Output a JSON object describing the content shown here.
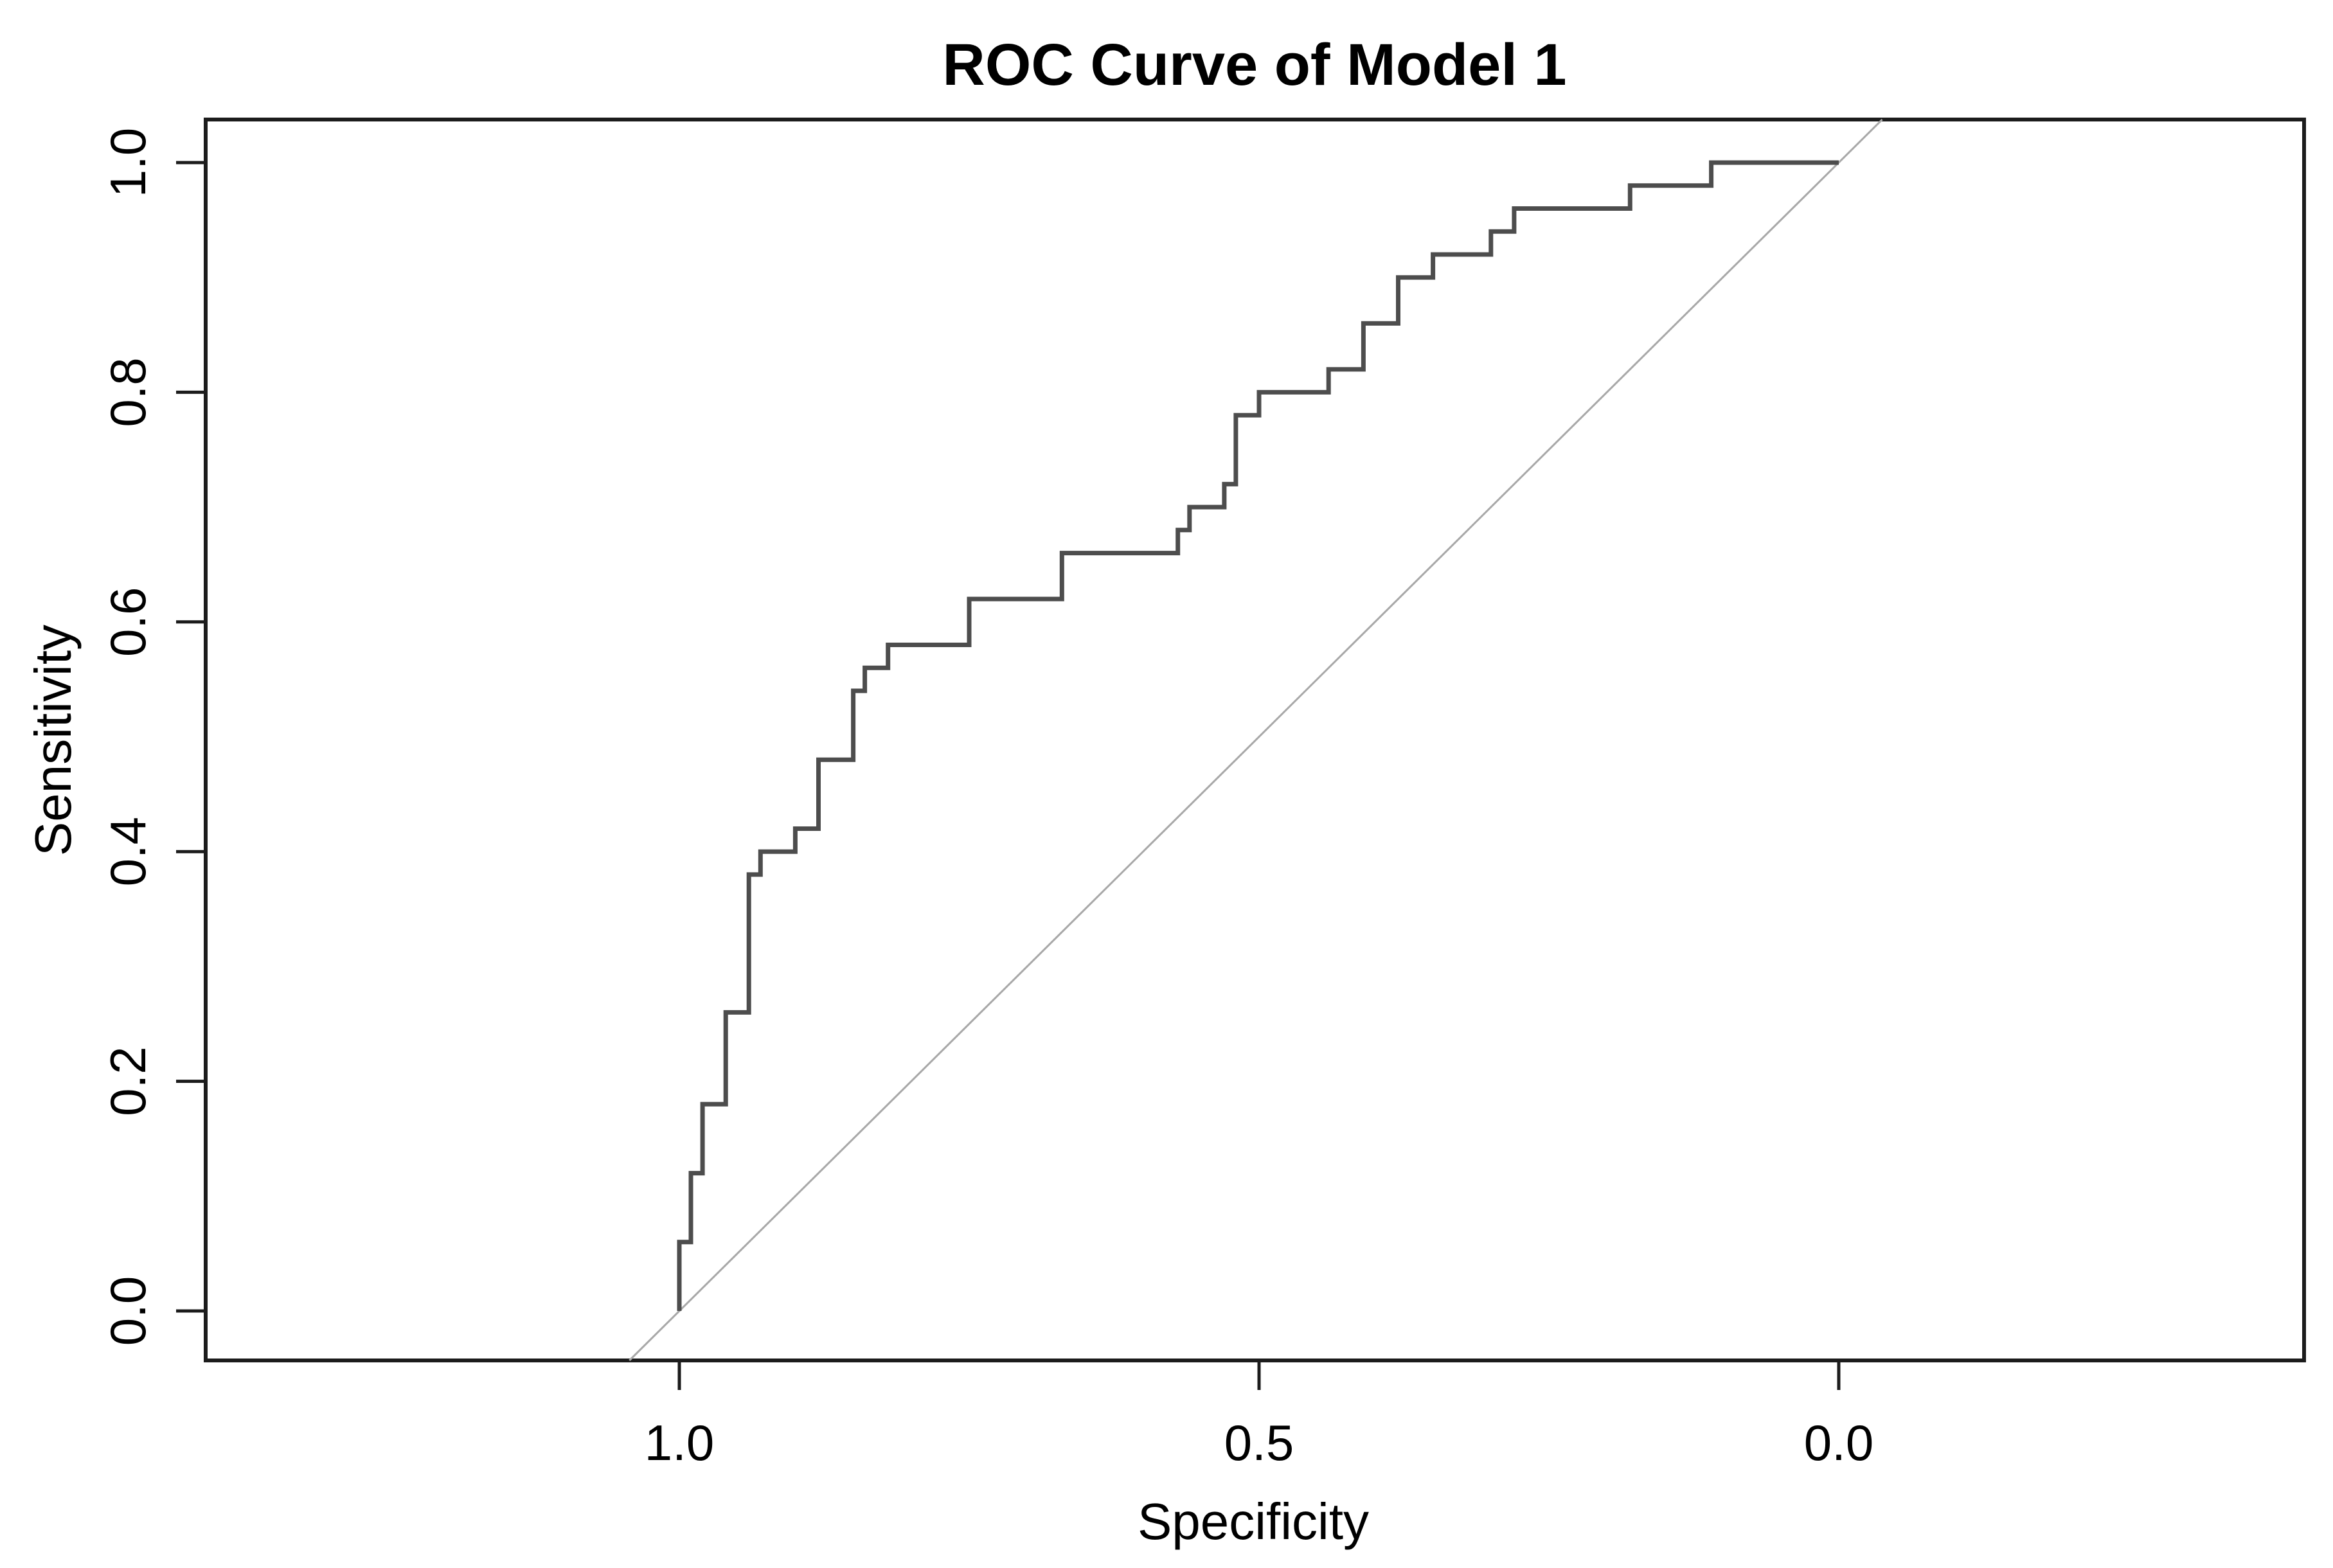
{
  "chart_data": {
    "type": "line",
    "subtype": "roc-step-curve",
    "title": "ROC Curve of Model 1",
    "xlabel": "Specificity",
    "ylabel": "Sensitivity",
    "x_axis_reversed": true,
    "xlim": [
      1.0,
      0.0
    ],
    "ylim": [
      0.0,
      1.0
    ],
    "x_ticks": [
      1.0,
      0.5,
      0.0
    ],
    "x_tick_labels": [
      "1.0",
      "0.5",
      "0.0"
    ],
    "y_ticks": [
      0.0,
      0.2,
      0.4,
      0.6,
      0.8,
      1.0
    ],
    "y_tick_labels": [
      "0.0",
      "0.2",
      "0.4",
      "0.6",
      "0.8",
      "1.0"
    ],
    "grid": false,
    "legend": null,
    "colors": {
      "curve": "#4d4d4d",
      "reference_diagonal": "#a8a8a8",
      "axis": "#1c1c1c",
      "background": "#ffffff"
    },
    "series": [
      {
        "name": "ROC curve of Model 1",
        "style": "step",
        "points_format": [
          "specificity",
          "sensitivity"
        ],
        "points": [
          [
            1.0,
            0.0
          ],
          [
            1.0,
            0.06
          ],
          [
            0.99,
            0.06
          ],
          [
            0.99,
            0.12
          ],
          [
            0.98,
            0.12
          ],
          [
            0.98,
            0.18
          ],
          [
            0.96,
            0.18
          ],
          [
            0.96,
            0.26
          ],
          [
            0.94,
            0.26
          ],
          [
            0.94,
            0.38
          ],
          [
            0.93,
            0.38
          ],
          [
            0.93,
            0.4
          ],
          [
            0.9,
            0.4
          ],
          [
            0.9,
            0.42
          ],
          [
            0.88,
            0.42
          ],
          [
            0.88,
            0.48
          ],
          [
            0.85,
            0.48
          ],
          [
            0.85,
            0.54
          ],
          [
            0.84,
            0.54
          ],
          [
            0.84,
            0.56
          ],
          [
            0.82,
            0.56
          ],
          [
            0.82,
            0.58
          ],
          [
            0.75,
            0.58
          ],
          [
            0.75,
            0.62
          ],
          [
            0.67,
            0.62
          ],
          [
            0.67,
            0.66
          ],
          [
            0.57,
            0.66
          ],
          [
            0.57,
            0.68
          ],
          [
            0.56,
            0.68
          ],
          [
            0.56,
            0.7
          ],
          [
            0.53,
            0.7
          ],
          [
            0.53,
            0.72
          ],
          [
            0.52,
            0.72
          ],
          [
            0.52,
            0.78
          ],
          [
            0.5,
            0.78
          ],
          [
            0.5,
            0.8
          ],
          [
            0.44,
            0.8
          ],
          [
            0.44,
            0.82
          ],
          [
            0.41,
            0.82
          ],
          [
            0.41,
            0.86
          ],
          [
            0.38,
            0.86
          ],
          [
            0.38,
            0.9
          ],
          [
            0.35,
            0.9
          ],
          [
            0.35,
            0.92
          ],
          [
            0.3,
            0.92
          ],
          [
            0.3,
            0.94
          ],
          [
            0.28,
            0.94
          ],
          [
            0.28,
            0.96
          ],
          [
            0.18,
            0.96
          ],
          [
            0.18,
            0.98
          ],
          [
            0.11,
            0.98
          ],
          [
            0.11,
            1.0
          ],
          [
            0.0,
            1.0
          ]
        ]
      },
      {
        "name": "reference diagonal (chance line)",
        "style": "line",
        "points_format": [
          "specificity",
          "sensitivity"
        ],
        "points": [
          [
            1.0,
            0.0
          ],
          [
            0.0,
            1.0
          ]
        ]
      }
    ]
  }
}
